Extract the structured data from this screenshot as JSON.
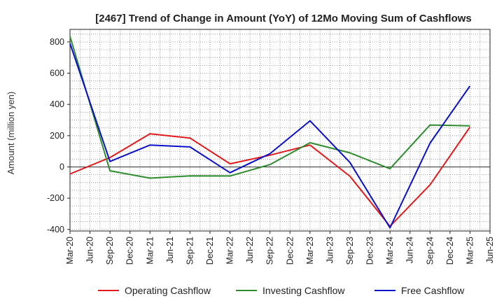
{
  "chart_data": {
    "type": "line",
    "title": "[2467]  Trend of Change in Amount (YoY) of 12Mo Moving Sum of Cashflows",
    "ylabel": "Amount (million yen)",
    "xlabel": "",
    "ylim": [
      -410,
      880
    ],
    "yticks": [
      -400,
      -200,
      0,
      200,
      400,
      600,
      800
    ],
    "ytick_labels": [
      "-400",
      "-200",
      "0",
      "200",
      "400",
      "600",
      "800"
    ],
    "categories": [
      "Mar-20",
      "Jun-20",
      "Sep-20",
      "Dec-20",
      "Mar-21",
      "Jun-21",
      "Sep-21",
      "Dec-21",
      "Mar-22",
      "Jun-22",
      "Sep-22",
      "Dec-22",
      "Mar-23",
      "Jun-23",
      "Sep-23",
      "Dec-23",
      "Mar-24",
      "Jun-24",
      "Sep-24",
      "Dec-24",
      "Mar-25",
      "Jun-25"
    ],
    "series": [
      {
        "name": "Operating Cashflow",
        "color": "#e31a1c",
        "values": [
          -45,
          null,
          60,
          null,
          212,
          null,
          185,
          null,
          20,
          null,
          75,
          null,
          140,
          null,
          -60,
          null,
          -380,
          null,
          -115,
          null,
          255,
          null
        ]
      },
      {
        "name": "Investing Cashflow",
        "color": "#2e8b2e",
        "values": [
          835,
          null,
          -25,
          null,
          -72,
          null,
          -57,
          null,
          -58,
          null,
          15,
          null,
          155,
          null,
          90,
          null,
          -12,
          null,
          268,
          null,
          263,
          null
        ]
      },
      {
        "name": "Free Cashflow",
        "color": "#0a10c8",
        "values": [
          790,
          null,
          35,
          null,
          140,
          null,
          128,
          null,
          -37,
          null,
          85,
          null,
          295,
          null,
          28,
          null,
          -390,
          null,
          152,
          null,
          518,
          null
        ]
      }
    ]
  }
}
